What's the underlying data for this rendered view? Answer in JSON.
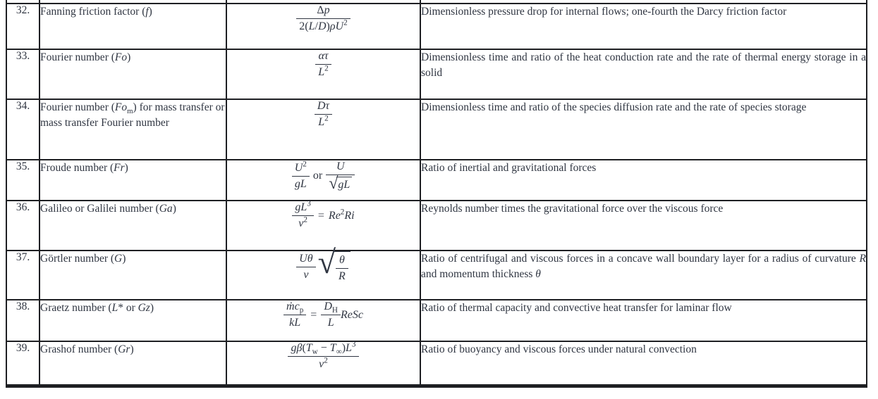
{
  "colors": {
    "text": "#303642",
    "border": "#1e1f23",
    "background": "#ffffff"
  },
  "table": {
    "kind": "table",
    "description": "Scanned reference table of dimensionless numbers with serial number, name, defining formula and physical interpretation",
    "rows": [
      {
        "no": "32.",
        "name_html": "Fanning friction factor (<i>f</i>)",
        "formula_html": "<span class='frac'><span class='num'>Δ<i>p</i></span><span class='den'>2(<i>L</i>/<i>D</i>)<i>ρU</i><sup>2</sup></span></span>",
        "description_html": "Dimensionless pressure drop for internal flows; one-fourth the Darcy friction factor"
      },
      {
        "no": "33.",
        "name_html": "Fourier number (<i>Fo</i>)",
        "formula_html": "<span class='frac'><span class='num'><i>ατ</i></span><span class='den'><i>L</i><sup>2</sup></span></span>",
        "description_html": "Dimensionless time and ratio of the heat conduction rate and the rate of ther­mal energy storage in a solid"
      },
      {
        "no": "34.",
        "name_html": "Fourier number (<i>Fo</i><sub>m</sub>) for mass transfer or mass transfer Fourier number",
        "formula_html": "<span class='frac'><span class='num'><i>Dτ</i></span><span class='den'><i>L</i><sup>2</sup></span></span>",
        "description_html": "Dimensionless time and ratio of the species diffusion rate and the rate of spe­cies storage"
      },
      {
        "no": "35.",
        "name_html": "Froude number (<i>Fr</i>)",
        "formula_html": "<span class='frac'><span class='num'><i>U</i><sup>2</sup></span><span class='den'><i>gL</i></span></span><span class='orword'>or</span><span class='frac'><span class='num'><i>U</i></span><span class='den'><span class='sqrt'><span class='rad'>√</span><span class='arg'><i>gL</i></span></span></span></span>",
        "description_html": "Ratio of inertial and gravitational forces"
      },
      {
        "no": "36.",
        "name_html": "Galileo or Galilei number (<i>Ga</i>)",
        "formula_html": "<span class='frac'><span class='num'><i>gL</i><sup>3</sup></span><span class='den'><i>ν</i><sup>2</sup></span></span><span class='op'>=</span><i>Re</i><sup>2</sup><i>Ri</i>",
        "description_html": "Reynolds number times the gravitational force over the viscous force"
      },
      {
        "no": "37.",
        "name_html": "Görtler number (<i>G</i>)",
        "formula_html": "<span class='frac'><span class='num'><i>Uθ</i></span><span class='den'><i>ν</i></span></span><span class='sqrt big'><span class='rad'>√</span><span class='arg'><span class='frac'><span class='num'><i>θ</i></span><span class='den'><i>R</i></span></span></span></span>",
        "description_html": "Ratio of centrifugal and viscous forces in a concave wall boundary layer for a radius of curvature <i>R</i> and momentum thickness <i>θ</i>"
      },
      {
        "no": "38.",
        "name_html": "Graetz number (<i>L</i>* or <i>Gz</i>)",
        "formula_html": "<span class='frac'><span class='num'><i>ṁc</i><sub>p</sub></span><span class='den'><i>kL</i></span></span><span class='op'>=</span><span class='frac'><span class='num'><i>D</i><sub>H</sub></span><span class='den'><i>L</i></span></span><i>ReSc</i>",
        "description_html": "Ratio of thermal capacity and convective heat transfer for laminar flow"
      },
      {
        "no": "39.",
        "name_html": "Grashof number (<i>Gr</i>)",
        "formula_html": "<span class='frac'><span class='num'><i>gβ</i>(<i>T</i><sub>w</sub> − <i>T</i><sub>∞</sub>)<i>L</i><sup>3</sup></span><span class='den'><i>ν</i><sup>2</sup></span></span>",
        "description_html": "Ratio of buoyancy and viscous forces under natural convection"
      }
    ]
  }
}
